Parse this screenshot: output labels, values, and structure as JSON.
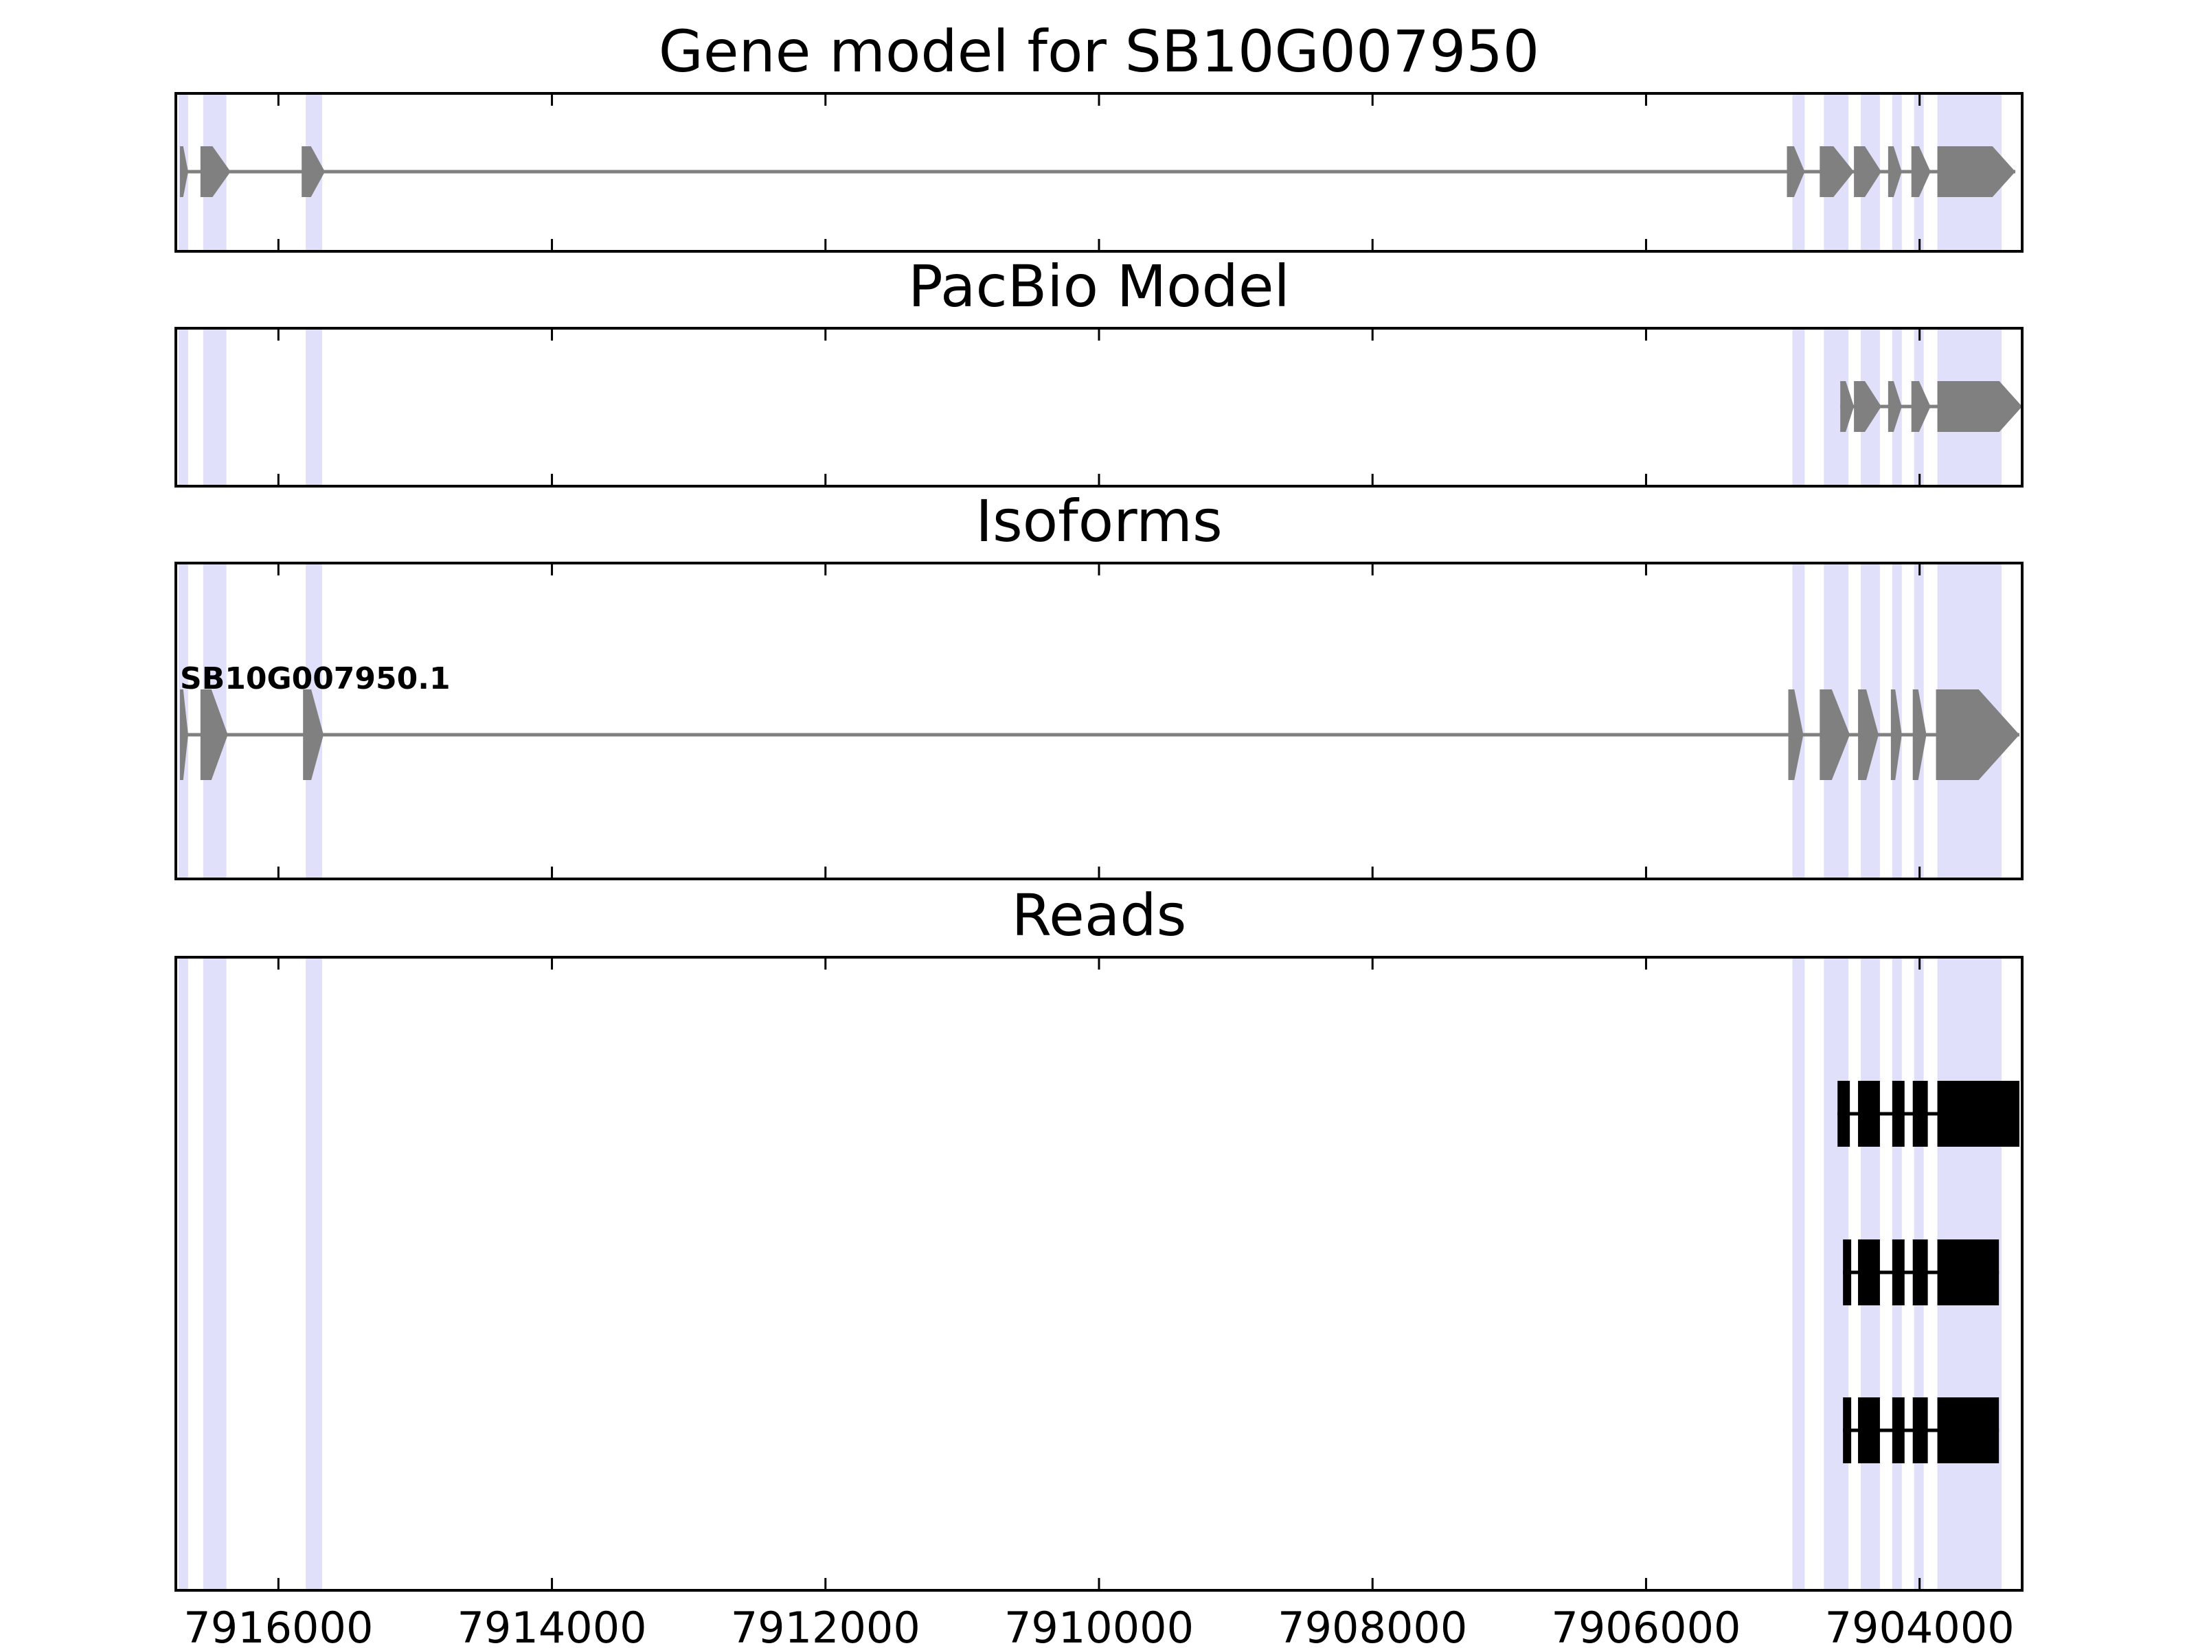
{
  "chart_data": {
    "type": "gene_track",
    "xlim": [
      7916750,
      7903250
    ],
    "x_ticks": [
      7916000,
      7914000,
      7912000,
      7910000,
      7908000,
      7906000,
      7904000
    ],
    "highlight_color": "#e0e0fa",
    "highlight_regions": [
      [
        7916730,
        7916660
      ],
      [
        7916550,
        7916380
      ],
      [
        7915800,
        7915680
      ],
      [
        7904930,
        7904840
      ],
      [
        7904700,
        7904520
      ],
      [
        7904430,
        7904290
      ],
      [
        7904200,
        7904130
      ],
      [
        7904040,
        7903970
      ],
      [
        7903870,
        7903400
      ]
    ],
    "panels": [
      {
        "title": "Gene model for SB10G007950",
        "type": "gene_model",
        "color": "#808080",
        "strand": "-",
        "span": [
          7916720,
          7903300
        ],
        "exons": [
          [
            7916720,
            7916660
          ],
          [
            7916570,
            7916350
          ],
          [
            7915830,
            7915660
          ],
          [
            7904970,
            7904840
          ],
          [
            7904730,
            7904480
          ],
          [
            7904480,
            7904280
          ],
          [
            7904230,
            7904130
          ],
          [
            7904060,
            7903920
          ],
          [
            7903870,
            7903300
          ]
        ]
      },
      {
        "title": "PacBio Model",
        "type": "gene_model",
        "color": "#808080",
        "strand": "-",
        "span": [
          7904580,
          7903250
        ],
        "exons": [
          [
            7904580,
            7904480
          ],
          [
            7904480,
            7904280
          ],
          [
            7904230,
            7904130
          ],
          [
            7904060,
            7903920
          ],
          [
            7903870,
            7903250
          ]
        ]
      },
      {
        "title": "Isoforms",
        "type": "isoforms",
        "color": "#808080",
        "isoforms": [
          {
            "name": "SB10G007950.1",
            "span": [
              7916720,
              7903270
            ],
            "exons": [
              [
                7916720,
                7916660
              ],
              [
                7916570,
                7916370
              ],
              [
                7915820,
                7915670
              ],
              [
                7904960,
                7904850
              ],
              [
                7904730,
                7904510
              ],
              [
                7904450,
                7904300
              ],
              [
                7904210,
                7904130
              ],
              [
                7904050,
                7903950
              ],
              [
                7903880,
                7903270
              ]
            ]
          }
        ]
      },
      {
        "title": "Reads",
        "type": "reads",
        "color": "#000000",
        "reads": [
          {
            "span": [
              7904600,
              7903270
            ],
            "exons": [
              [
                7904600,
                7904510
              ],
              [
                7904450,
                7904290
              ],
              [
                7904200,
                7904110
              ],
              [
                7904050,
                7903940
              ],
              [
                7903870,
                7903270
              ]
            ]
          },
          {
            "span": [
              7904560,
              7903420
            ],
            "exons": [
              [
                7904560,
                7904500
              ],
              [
                7904450,
                7904290
              ],
              [
                7904200,
                7904110
              ],
              [
                7904050,
                7903940
              ],
              [
                7903870,
                7903420
              ]
            ]
          },
          {
            "span": [
              7904560,
              7903420
            ],
            "exons": [
              [
                7904560,
                7904500
              ],
              [
                7904450,
                7904290
              ],
              [
                7904200,
                7904110
              ],
              [
                7904050,
                7903940
              ],
              [
                7903870,
                7903420
              ]
            ]
          }
        ]
      }
    ]
  }
}
